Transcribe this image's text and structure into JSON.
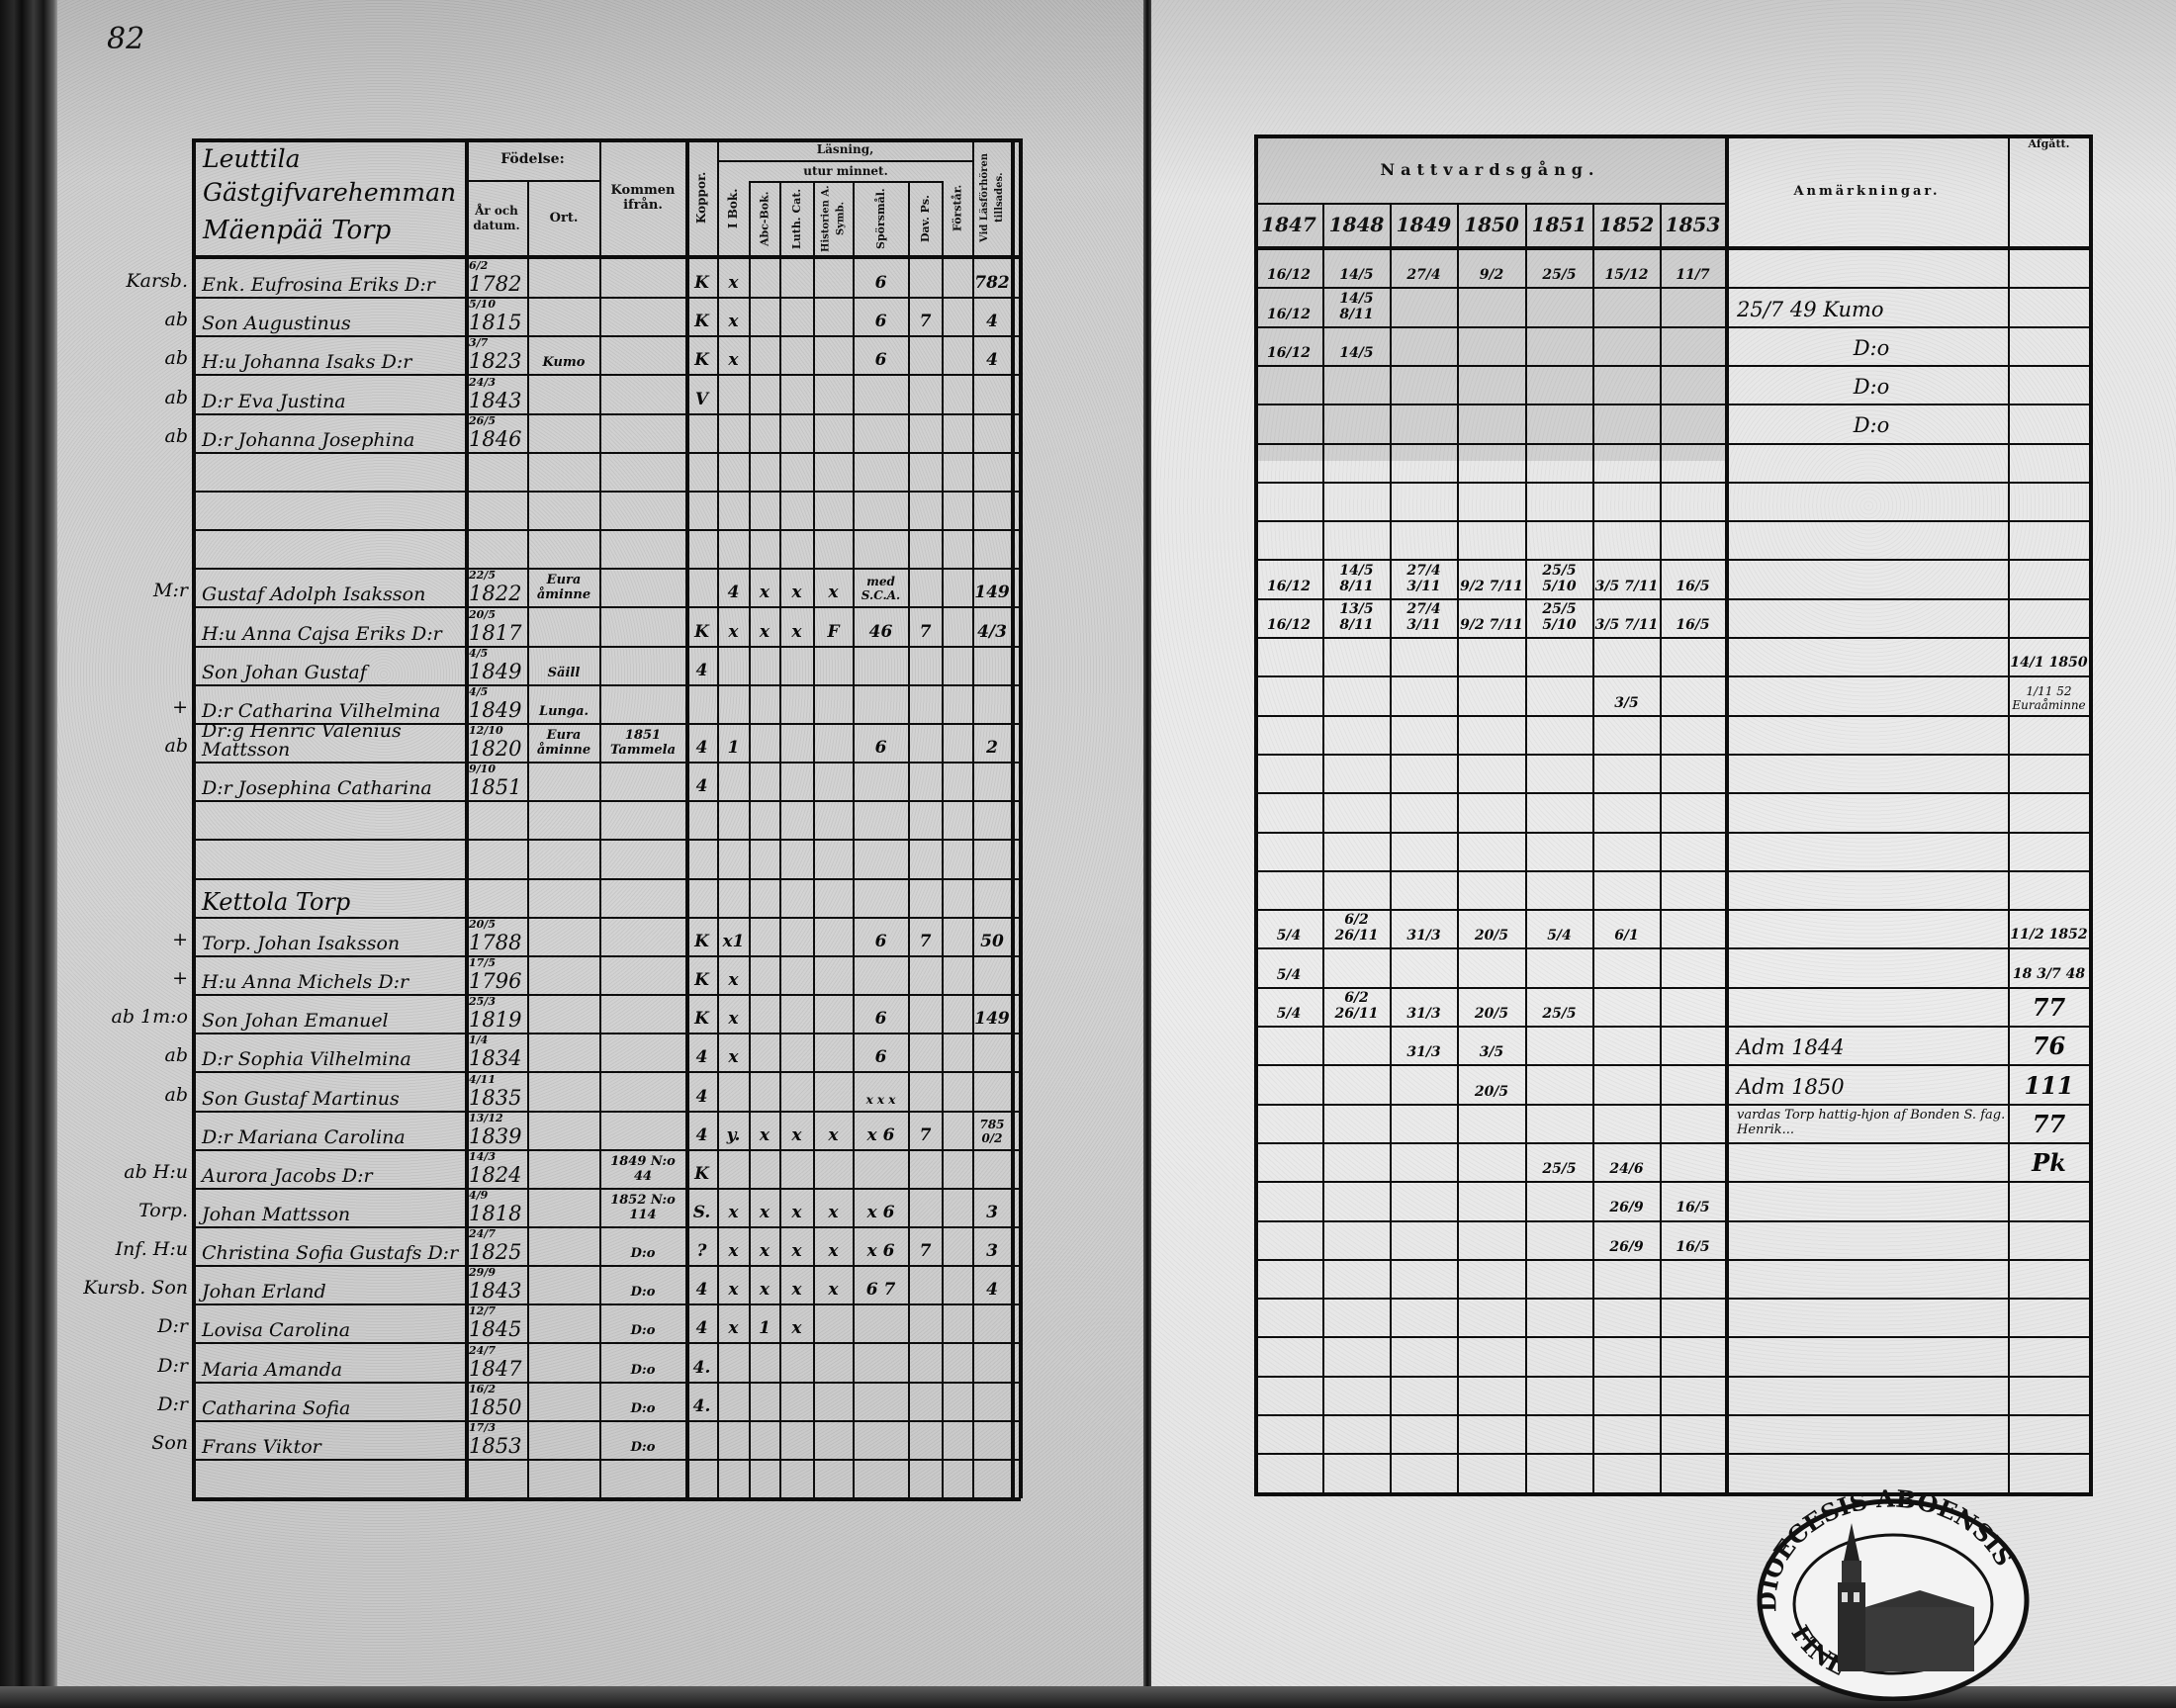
{
  "page_number": "82",
  "left_page": {
    "headers": {
      "name_block": [
        "Leuttila",
        "Gästgifvarehemman",
        "Mäenpää Torp"
      ],
      "fodelse": "Födelse:",
      "ar_och_datum": "År och datum.",
      "ort": "Ort.",
      "kommen": "Kommen ifrån.",
      "koppor": "Koppor.",
      "lasning": "Läsning,",
      "utur_minnet": "utur minnet.",
      "i_bok": "I Bok.",
      "abc_bok": "Abc-Bok.",
      "luth_cat": "Luth. Cat.",
      "historien": "Historien A. Symb.",
      "sporsmal": "Spörsmål.",
      "dav_ps": "Dav. Ps.",
      "forstar": "Förstår.",
      "vid": "Vid Läsförhören tillsades."
    },
    "rows": [
      {
        "margin": "Karsb.",
        "name": "Enk. Eufrosina Eriks D:r",
        "born": "6/2",
        "year": "1782",
        "koppor": "K",
        "ibok": "x",
        "spors": "6",
        "vid": "782"
      },
      {
        "margin": "ab",
        "name": "Son Augustinus",
        "born": "5/10",
        "year": "1815",
        "koppor": "K",
        "ibok": "x",
        "spors": "6",
        "dav": "7",
        "vid": "4"
      },
      {
        "margin": "ab",
        "name": "H:u Johanna Isaks D:r",
        "born": "3/7",
        "year": "1823",
        "ort": "Kumo",
        "koppor": "K",
        "ibok": "x",
        "spors": "6",
        "vid": "4"
      },
      {
        "margin": "ab",
        "name": "D:r Eva Justina",
        "born": "24/3",
        "year": "1843",
        "koppor": "V"
      },
      {
        "margin": "ab",
        "name": "D:r Johanna Josephina",
        "born": "26/5",
        "year": "1846"
      },
      {},
      {},
      {},
      {
        "margin": "M:r",
        "name": "Gustaf Adolph Isaksson",
        "born": "22/5",
        "year": "1822",
        "ort": "Eura åminne",
        "ibok": "4",
        "abc": "x",
        "luth": "x",
        "hist": "x",
        "spors": "med S.C.A.",
        "vid": "149"
      },
      {
        "name": "H:u Anna Cajsa Eriks D:r",
        "born": "20/5",
        "year": "1817",
        "koppor": "K",
        "ibok": "x",
        "abc": "x",
        "luth": "x",
        "hist": "F",
        "spors": "46",
        "dav": "7",
        "vid": "4/3"
      },
      {
        "name": "Son Johan Gustaf",
        "born": "4/5",
        "year": "1849",
        "ort": "Säill",
        "koppor": "4"
      },
      {
        "margin": "+",
        "name": "D:r Catharina Vilhelmina",
        "born": "4/5",
        "year": "1849",
        "ort": "Lunga."
      },
      {
        "margin": "ab",
        "name": "Dr:g Henric Valenius Mattsson",
        "born": "12/10",
        "year": "1820",
        "ort": "Eura åminne",
        "kommen": "1851 Tammela",
        "koppor": "4",
        "ibok": "1",
        "spors": "6",
        "vid": "2"
      },
      {
        "name": "D:r Josephina Catharina",
        "born": "9/10",
        "year": "1851",
        "koppor": "4"
      },
      {},
      {},
      {
        "name": "Kettola Torp"
      },
      {
        "margin": "+",
        "name": "Torp. Johan Isaksson",
        "born": "20/5",
        "year": "1788",
        "koppor": "K",
        "ibok": "x1",
        "spors": "6",
        "dav": "7",
        "vid": "50"
      },
      {
        "margin": "+",
        "name": "H:u Anna Michels D:r",
        "born": "17/5",
        "year": "1796",
        "koppor": "K",
        "ibok": "x"
      },
      {
        "margin": "ab 1m:o",
        "name": "Son Johan Emanuel",
        "born": "25/3",
        "year": "1819",
        "koppor": "K",
        "ibok": "x",
        "spors": "6",
        "vid": "149"
      },
      {
        "margin": "ab",
        "name": "D:r Sophia Vilhelmina",
        "born": "1/4",
        "year": "1834",
        "koppor": "4",
        "ibok": "x",
        "spors": "6"
      },
      {
        "margin": "ab",
        "name": "Son Gustaf Martinus",
        "born": "4/11",
        "year": "1835",
        "koppor": "4",
        "spors": "x x x"
      },
      {
        "name": "D:r Mariana Carolina",
        "born": "13/12",
        "year": "1839",
        "koppor": "4",
        "ibok": "y.",
        "abc": "x",
        "luth": "x",
        "hist": "x",
        "spors": "x 6",
        "dav": "7",
        "vid": "785 0/2"
      },
      {
        "margin": "ab H:u",
        "name": "Aurora Jacobs D:r",
        "born": "14/3",
        "year": "1824",
        "kommen": "1849 N:o 44",
        "koppor": "K"
      },
      {
        "margin": "Torp.",
        "name": "Johan Mattsson",
        "born": "4/9",
        "year": "1818",
        "kommen": "1852 N:o 114",
        "koppor": "S.",
        "ibok": "x",
        "abc": "x",
        "luth": "x",
        "hist": "x",
        "spors": "x 6",
        "vid": "3"
      },
      {
        "margin": "Inf. H:u",
        "name": "Christina Sofia Gustafs D:r",
        "born": "24/7",
        "year": "1825",
        "kommen": "D:o",
        "koppor": "?",
        "ibok": "x",
        "abc": "x",
        "luth": "x",
        "hist": "x",
        "spors": "x 6",
        "dav": "7",
        "vid": "3"
      },
      {
        "margin": "Kursb. Son",
        "name": "Johan Erland",
        "born": "29/9",
        "year": "1843",
        "kommen": "D:o",
        "koppor": "4",
        "ibok": "x",
        "abc": "x",
        "luth": "x",
        "hist": "x",
        "spors": "6 7",
        "vid": "4"
      },
      {
        "margin": "D:r",
        "name": "Lovisa Carolina",
        "born": "12/7",
        "year": "1845",
        "kommen": "D:o",
        "koppor": "4",
        "ibok": "x",
        "abc": "1",
        "luth": "x"
      },
      {
        "margin": "D:r",
        "name": "Maria Amanda",
        "born": "24/7",
        "year": "1847",
        "kommen": "D:o",
        "koppor": "4."
      },
      {
        "margin": "D:r",
        "name": "Catharina Sofia",
        "born": "16/2",
        "year": "1850",
        "kommen": "D:o",
        "koppor": "4."
      },
      {
        "margin": "Son",
        "name": "Frans Viktor",
        "born": "17/3",
        "year": "1853",
        "kommen": "D:o"
      },
      {}
    ]
  },
  "right_page": {
    "headers": {
      "nattvardsgang": "Nattvardsgång.",
      "years": [
        "1847",
        "1848",
        "1849",
        "1850",
        "1851",
        "1852",
        "1853"
      ],
      "anmarkningar": "Anmärkningar.",
      "afgatt": "Afgått."
    },
    "rows": [
      {
        "c": [
          "16/12",
          "14/5",
          "27/4",
          "9/2",
          "25/5",
          "15/12",
          "11/7"
        ]
      },
      {
        "c": [
          "16/12",
          "14/5 8/11"
        ],
        "remark": "25/7 49 Kumo"
      },
      {
        "c": [
          "16/12",
          "14/5"
        ],
        "remark": "D:o"
      },
      {
        "remark": "D:o"
      },
      {
        "remark": "D:o"
      },
      {},
      {},
      {},
      {
        "c": [
          "16/12",
          "14/5 8/11",
          "27/4 3/11",
          "9/2 7/11",
          "25/5 5/10",
          "3/5 7/11",
          "16/5"
        ]
      },
      {
        "c": [
          "16/12",
          "13/5 8/11",
          "27/4 3/11",
          "9/2 7/11",
          "25/5 5/10",
          "3/5 7/11",
          "16/5"
        ]
      },
      {
        "afgatt": "14/1 1850"
      },
      {
        "c": [
          "",
          "",
          "",
          "",
          "",
          "3/5"
        ],
        "afgatt": "1/11 52 Euraåminne"
      },
      {},
      {},
      {},
      {},
      {},
      {
        "c": [
          "5/4",
          "6/2 26/11",
          "31/3",
          "20/5",
          "5/4",
          "6/1"
        ],
        "afgatt": "11/2 1852"
      },
      {
        "c": [
          "5/4"
        ],
        "afgatt": "18 3/7 48"
      },
      {
        "c": [
          "5/4",
          "6/2 26/11",
          "31/3",
          "20/5",
          "25/5"
        ],
        "afgatt": "77"
      },
      {
        "c": [
          "",
          "",
          "31/3",
          "3/5"
        ],
        "remark": "Adm 1844",
        "afgatt": "76"
      },
      {
        "c": [
          "",
          "",
          "",
          "20/5"
        ],
        "remark": "Adm 1850",
        "afgatt": "111"
      },
      {
        "remark": "vardas Torp hattig-hjon af Bonden S. fag. Henrik...",
        "afgatt": "77"
      },
      {
        "c": [
          "",
          "",
          "",
          "",
          "25/5",
          "24/6"
        ],
        "afgatt": "Pk"
      },
      {
        "c": [
          "",
          "",
          "",
          "",
          "",
          "26/9",
          "16/5"
        ]
      },
      {
        "c": [
          "",
          "",
          "",
          "",
          "",
          "26/9",
          "16/5"
        ]
      },
      {},
      {},
      {},
      {},
      {},
      {}
    ]
  },
  "stamp": {
    "text_top": "DIOECESIS ABOENSIS",
    "text_bottom": "FINL"
  }
}
